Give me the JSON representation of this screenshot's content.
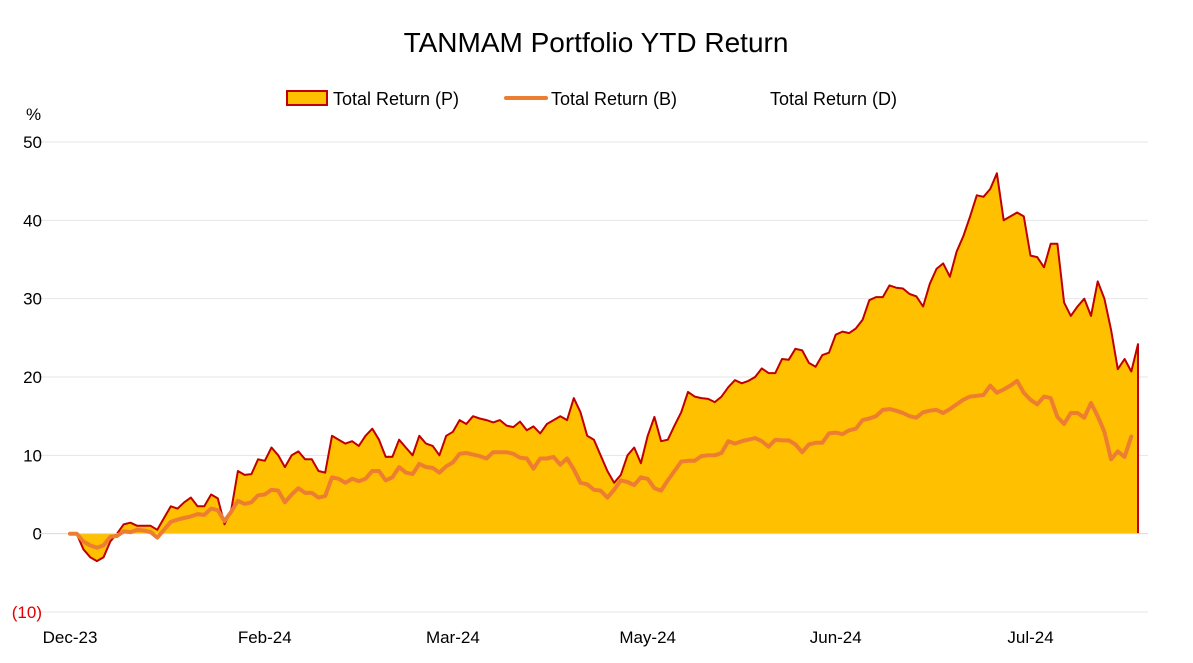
{
  "chart_data": {
    "type": "area",
    "title": "TANMAM Portfolio YTD Return",
    "ylabel": "%",
    "ylim": [
      -10,
      50
    ],
    "yticks": [
      50,
      40,
      30,
      20,
      10,
      0,
      -10
    ],
    "ytick_labels": [
      "50",
      "40",
      "30",
      "20",
      "10",
      "0",
      "(10)"
    ],
    "xticks": [
      "Dec-23",
      "Feb-24",
      "Mar-24",
      "May-24",
      "Jun-24",
      "Jul-24"
    ],
    "xtick_positions": [
      0,
      29,
      57,
      86,
      114,
      143
    ],
    "legend": [
      "Total Return (P)",
      "Total Return (B)",
      "Total Return (D)"
    ],
    "legend_position": "top",
    "colors": {
      "area_fill": "#ffc000",
      "area_line": "#c00000",
      "b_line": "#ed7d31",
      "grid": "#e6e6e6",
      "neg_label": "#e00000"
    },
    "series": [
      {
        "name": "Total Return (P)",
        "style": "area",
        "values": [
          0,
          0,
          -2,
          -3,
          -3.5,
          -3,
          -1,
          0,
          1.2,
          1.4,
          1,
          1,
          1,
          0.5,
          2,
          3.5,
          3.2,
          4,
          4.6,
          3.5,
          3.5,
          5,
          4.5,
          1.2,
          3,
          8,
          7.5,
          7.6,
          9.5,
          9.3,
          11,
          10,
          8.5,
          10,
          10.5,
          9.5,
          9.5,
          8,
          7.8,
          12.5,
          12,
          11.5,
          11.8,
          11.2,
          12.5,
          13.4,
          12,
          9.8,
          9.8,
          12,
          11,
          10,
          12.5,
          11.5,
          11.2,
          10,
          12.5,
          13,
          14.5,
          14,
          15,
          14.7,
          14.5,
          14.2,
          14.5,
          13.8,
          13.6,
          14.3,
          13.2,
          13.7,
          12.8,
          14,
          14.5,
          15,
          14.5,
          17.3,
          15.5,
          12.5,
          12,
          10,
          8,
          6.5,
          7.5,
          10,
          11,
          9,
          12.5,
          14.9,
          11.8,
          12,
          13.8,
          15.5,
          18.1,
          17.5,
          17.3,
          17.2,
          16.8,
          17.5,
          18.7,
          19.6,
          19.2,
          19.5,
          20,
          21.1,
          20.5,
          20.5,
          22.3,
          22.2,
          23.6,
          23.4,
          21.8,
          21.3,
          22.8,
          23.1,
          25.4,
          25.8,
          25.6,
          26.2,
          27.3,
          29.8,
          30.2,
          30.2,
          31.7,
          31.4,
          31.3,
          30.6,
          30.3,
          29,
          31.9,
          33.8,
          34.5,
          32.8,
          36,
          38,
          40.5,
          43.2,
          43,
          44,
          46,
          40,
          40.5,
          41,
          40.5,
          35.5,
          35.3,
          34,
          37,
          37,
          29.5,
          27.8,
          29,
          30,
          27.8,
          32.2,
          30,
          26,
          21,
          22.3,
          20.7,
          24.2
        ]
      },
      {
        "name": "Total Return (B)",
        "style": "line",
        "values": [
          0,
          0,
          -1,
          -1.5,
          -1.8,
          -1.5,
          -0.4,
          -0.3,
          0.3,
          0.2,
          0.5,
          0.4,
          0.2,
          -0.5,
          0.5,
          1.5,
          1.8,
          2,
          2.2,
          2.5,
          2.4,
          3.2,
          3,
          1.6,
          2.8,
          4.2,
          3.8,
          4,
          4.9,
          5,
          5.6,
          5.5,
          4,
          5,
          5.8,
          5.2,
          5.2,
          4.6,
          4.8,
          7.2,
          7,
          6.5,
          7,
          6.7,
          7,
          8,
          8,
          6.8,
          7.2,
          8.5,
          7.8,
          7.6,
          8.9,
          8.5,
          8.4,
          7.8,
          8.6,
          9.1,
          10.2,
          10.3,
          10.1,
          9.9,
          9.6,
          10.4,
          10.4,
          10.4,
          10.2,
          9.7,
          9.6,
          8.3,
          9.6,
          9.6,
          9.8,
          8.8,
          9.6,
          8.2,
          6.5,
          6.3,
          5.6,
          5.5,
          4.6,
          5.6,
          6.8,
          6.6,
          6.2,
          7.2,
          7,
          5.8,
          5.5,
          6.8,
          8,
          9.2,
          9.3,
          9.3,
          9.9,
          10,
          10,
          10.3,
          11.8,
          11.5,
          11.8,
          12,
          12.2,
          11.8,
          11.1,
          12,
          11.9,
          11.9,
          11.4,
          10.4,
          11.4,
          11.6,
          11.6,
          12.8,
          12.9,
          12.7,
          13.2,
          13.4,
          14.5,
          14.7,
          15,
          15.8,
          15.9,
          15.7,
          15.4,
          15,
          14.8,
          15.5,
          15.7,
          15.8,
          15.4,
          15.9,
          16.5,
          17.1,
          17.5,
          17.6,
          17.7,
          18.9,
          18,
          18.4,
          18.9,
          19.5,
          18,
          17.1,
          16.5,
          17.5,
          17.3,
          14.9,
          14,
          15.4,
          15.4,
          14.8,
          16.7,
          15,
          13,
          9.5,
          10.5,
          9.8,
          12.4
        ]
      },
      {
        "name": "Total Return (D)",
        "style": "none",
        "values": []
      }
    ]
  }
}
